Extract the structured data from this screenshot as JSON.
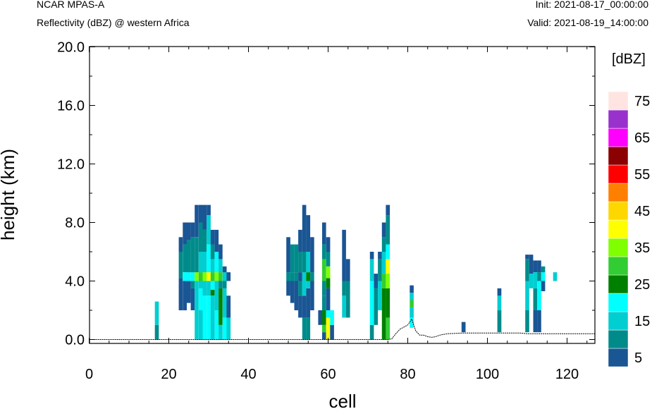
{
  "header": {
    "model": "NCAR MPAS-A",
    "field": "Reflectivity (dBZ) @ western Africa",
    "init": "Init: 2021-08-17_00:00:00",
    "valid": "Valid: 2021-08-19_14:00:00"
  },
  "chart_data": {
    "type": "heatmap",
    "title": "Reflectivity (dBZ) @ western Africa",
    "xlabel": "cell",
    "ylabel": "height (km)",
    "xlim": [
      0,
      127
    ],
    "ylim": [
      -0.6,
      20.0
    ],
    "xticks": [
      "0",
      "20",
      "40",
      "60",
      "80",
      "100",
      "120"
    ],
    "yticks": [
      "0.0",
      "4.0",
      "8.0",
      "12.0",
      "16.0",
      "20.0"
    ],
    "colorbar": {
      "unit": "[dBZ]",
      "levels": [
        5,
        10,
        15,
        20,
        25,
        30,
        35,
        40,
        45,
        50,
        55,
        60,
        65,
        70,
        75
      ],
      "labels": [
        "5",
        "15",
        "25",
        "35",
        "45",
        "55",
        "65",
        "75"
      ],
      "colors": [
        "#1a5594",
        "#008b8b",
        "#00ced1",
        "#00ffff",
        "#008000",
        "#32cd32",
        "#7fff00",
        "#ffff00",
        "#ffd700",
        "#ff8000",
        "#ff0000",
        "#8b0000",
        "#ff00ff",
        "#9932cc",
        "#ffe4e1"
      ]
    },
    "columns": [
      {
        "x": [
          16.5,
          17.5
        ],
        "segs": [
          [
            0.0,
            1.0,
            1
          ],
          [
            1.0,
            2.6,
            2
          ]
        ]
      },
      {
        "x": [
          22.5,
          23.5
        ],
        "segs": [
          [
            2.0,
            4.2,
            0
          ],
          [
            4.2,
            6.0,
            1
          ],
          [
            6.0,
            7.0,
            0
          ]
        ]
      },
      {
        "x": [
          23.5,
          24.5
        ],
        "segs": [
          [
            2.0,
            4.0,
            0
          ],
          [
            4.0,
            4.6,
            3
          ],
          [
            4.6,
            6.5,
            1
          ],
          [
            6.5,
            8.0,
            0
          ]
        ]
      },
      {
        "x": [
          24.5,
          25.5
        ],
        "segs": [
          [
            2.5,
            4.0,
            0
          ],
          [
            4.0,
            4.6,
            3
          ],
          [
            4.6,
            6.8,
            1
          ],
          [
            6.8,
            8.0,
            0
          ]
        ]
      },
      {
        "x": [
          25.5,
          26.5
        ],
        "segs": [
          [
            2.0,
            3.5,
            0
          ],
          [
            3.5,
            4.0,
            1
          ],
          [
            4.0,
            4.6,
            3
          ],
          [
            4.6,
            7.0,
            1
          ],
          [
            7.0,
            8.0,
            0
          ]
        ]
      },
      {
        "x": [
          26.5,
          27.5
        ],
        "segs": [
          [
            0.0,
            4.0,
            2
          ],
          [
            4.0,
            4.6,
            6
          ],
          [
            4.6,
            7.0,
            1
          ],
          [
            7.0,
            9.2,
            0
          ]
        ]
      },
      {
        "x": [
          27.5,
          28.5
        ],
        "segs": [
          [
            0.0,
            2.0,
            2
          ],
          [
            2.0,
            3.5,
            3
          ],
          [
            3.5,
            4.0,
            2
          ],
          [
            4.0,
            4.6,
            5
          ],
          [
            4.6,
            6.0,
            2
          ],
          [
            6.0,
            8.0,
            1
          ],
          [
            8.0,
            9.2,
            0
          ]
        ]
      },
      {
        "x": [
          28.5,
          29.5
        ],
        "segs": [
          [
            0.0,
            3.0,
            3
          ],
          [
            3.0,
            4.0,
            2
          ],
          [
            4.0,
            4.6,
            6
          ],
          [
            4.6,
            6.0,
            2
          ],
          [
            6.0,
            7.5,
            1
          ],
          [
            7.5,
            9.2,
            0
          ]
        ]
      },
      {
        "x": [
          29.5,
          30.5
        ],
        "segs": [
          [
            0.0,
            3.0,
            3
          ],
          [
            3.0,
            4.0,
            2
          ],
          [
            4.0,
            4.6,
            7
          ],
          [
            4.6,
            6.5,
            3
          ],
          [
            6.5,
            8.5,
            2
          ],
          [
            8.5,
            9.2,
            0
          ]
        ]
      },
      {
        "x": [
          30.5,
          31.5
        ],
        "segs": [
          [
            0.0,
            3.0,
            2
          ],
          [
            3.0,
            3.4,
            4
          ],
          [
            3.4,
            4.0,
            3
          ],
          [
            4.0,
            4.6,
            5
          ],
          [
            4.6,
            5.5,
            2
          ],
          [
            5.5,
            6.5,
            1
          ],
          [
            6.5,
            7.5,
            0
          ]
        ]
      },
      {
        "x": [
          31.5,
          32.5
        ],
        "segs": [
          [
            0.0,
            2.0,
            3
          ],
          [
            2.0,
            4.0,
            2
          ],
          [
            4.0,
            4.6,
            6
          ],
          [
            4.6,
            6.0,
            3
          ],
          [
            6.0,
            7.5,
            0
          ]
        ]
      },
      {
        "x": [
          32.5,
          33.5
        ],
        "segs": [
          [
            0.0,
            1.0,
            2
          ],
          [
            1.0,
            3.5,
            4
          ],
          [
            3.5,
            4.0,
            1
          ],
          [
            4.0,
            4.6,
            5
          ],
          [
            4.6,
            5.5,
            2
          ],
          [
            5.5,
            6.5,
            0
          ]
        ]
      },
      {
        "x": [
          33.5,
          34.5
        ],
        "segs": [
          [
            0.0,
            1.5,
            3
          ],
          [
            1.5,
            3.5,
            2
          ],
          [
            3.5,
            4.0,
            1
          ],
          [
            4.0,
            4.6,
            2
          ],
          [
            4.6,
            5.0,
            0
          ]
        ]
      },
      {
        "x": [
          34.5,
          35.5
        ],
        "segs": [
          [
            0.0,
            1.5,
            2
          ],
          [
            1.5,
            3.0,
            0
          ],
          [
            4.0,
            4.6,
            0
          ]
        ]
      },
      {
        "x": [
          49.5,
          50.5
        ],
        "segs": [
          [
            3.0,
            4.0,
            0
          ],
          [
            4.0,
            4.6,
            1
          ],
          [
            4.6,
            7.0,
            0
          ]
        ]
      },
      {
        "x": [
          50.5,
          51.5
        ],
        "segs": [
          [
            2.5,
            4.0,
            0
          ],
          [
            4.0,
            4.6,
            1
          ],
          [
            4.6,
            6.5,
            1
          ]
        ]
      },
      {
        "x": [
          51.5,
          52.5
        ],
        "segs": [
          [
            2.0,
            4.0,
            0
          ],
          [
            4.0,
            4.6,
            1
          ],
          [
            4.6,
            6.5,
            1
          ]
        ]
      },
      {
        "x": [
          52.5,
          53.5
        ],
        "segs": [
          [
            1.5,
            3.0,
            0
          ],
          [
            3.0,
            4.0,
            1
          ],
          [
            4.0,
            4.6,
            0
          ],
          [
            4.6,
            6.0,
            1
          ],
          [
            6.0,
            7.5,
            0
          ]
        ]
      },
      {
        "x": [
          53.5,
          54.5
        ],
        "segs": [
          [
            0.0,
            1.5,
            1
          ],
          [
            1.5,
            3.0,
            0
          ],
          [
            3.0,
            4.6,
            2
          ],
          [
            4.6,
            6.0,
            1
          ],
          [
            6.0,
            9.2,
            0
          ]
        ]
      },
      {
        "x": [
          54.5,
          55.5
        ],
        "segs": [
          [
            0.0,
            1.5,
            1
          ],
          [
            1.5,
            3.5,
            0
          ],
          [
            3.5,
            4.0,
            2
          ],
          [
            4.0,
            4.6,
            4
          ],
          [
            4.6,
            6.0,
            2
          ],
          [
            6.0,
            8.5,
            0
          ]
        ]
      },
      {
        "x": [
          55.5,
          56.5
        ],
        "segs": [
          [
            2.0,
            4.0,
            0
          ],
          [
            4.0,
            4.6,
            1
          ],
          [
            4.6,
            6.0,
            0
          ],
          [
            6.0,
            7.0,
            0
          ]
        ]
      },
      {
        "x": [
          57.5,
          58.5
        ],
        "segs": [
          [
            1.0,
            2.0,
            0
          ]
        ]
      },
      {
        "x": [
          58.5,
          59.5
        ],
        "segs": [
          [
            0.0,
            0.5,
            0
          ],
          [
            0.5,
            1.0,
            5
          ],
          [
            1.0,
            2.0,
            4
          ],
          [
            2.0,
            3.0,
            1
          ],
          [
            3.0,
            4.0,
            1
          ],
          [
            4.0,
            5.5,
            5
          ],
          [
            5.5,
            6.5,
            1
          ],
          [
            6.5,
            8.0,
            0
          ]
        ]
      },
      {
        "x": [
          59.5,
          60.5
        ],
        "segs": [
          [
            0.0,
            1.5,
            7
          ],
          [
            1.5,
            2.0,
            3
          ],
          [
            2.0,
            3.5,
            0
          ],
          [
            3.5,
            4.2,
            4
          ],
          [
            4.2,
            5.0,
            6
          ],
          [
            5.0,
            6.0,
            1
          ],
          [
            6.0,
            7.0,
            0
          ]
        ]
      },
      {
        "x": [
          60.5,
          61.5
        ],
        "segs": [
          [
            0.0,
            1.0,
            0
          ],
          [
            1.0,
            2.0,
            3
          ]
        ]
      },
      {
        "x": [
          63.5,
          64.5
        ],
        "segs": [
          [
            1.5,
            3.0,
            2
          ],
          [
            3.0,
            4.0,
            1
          ],
          [
            4.0,
            6.0,
            0
          ],
          [
            6.0,
            7.5,
            0
          ]
        ]
      },
      {
        "x": [
          64.5,
          65.5
        ],
        "segs": [
          [
            1.5,
            4.0,
            1
          ],
          [
            4.0,
            5.5,
            0
          ]
        ]
      },
      {
        "x": [
          70.5,
          71.5
        ],
        "segs": [
          [
            0.0,
            1.0,
            1
          ],
          [
            1.0,
            4.0,
            3
          ],
          [
            4.0,
            5.5,
            2
          ],
          [
            5.5,
            6.0,
            0
          ]
        ]
      },
      {
        "x": [
          71.5,
          72.5
        ],
        "segs": [
          [
            1.0,
            3.5,
            1
          ],
          [
            3.5,
            4.5,
            0
          ]
        ]
      },
      {
        "x": [
          72.5,
          73.5
        ],
        "segs": [
          [
            2.0,
            4.0,
            2
          ],
          [
            4.0,
            5.5,
            1
          ],
          [
            5.5,
            6.0,
            0
          ]
        ]
      },
      {
        "x": [
          73.5,
          74.5
        ],
        "segs": [
          [
            0.0,
            3.5,
            4
          ],
          [
            3.5,
            4.5,
            5
          ],
          [
            4.5,
            6.0,
            2
          ],
          [
            6.0,
            7.0,
            1
          ],
          [
            7.0,
            8.0,
            0
          ]
        ]
      },
      {
        "x": [
          74.5,
          75.5
        ],
        "segs": [
          [
            0.0,
            1.5,
            5
          ],
          [
            1.5,
            3.5,
            4
          ],
          [
            3.5,
            4.5,
            6
          ],
          [
            4.5,
            5.5,
            7
          ],
          [
            5.5,
            6.5,
            3
          ],
          [
            6.5,
            8.5,
            1
          ],
          [
            8.5,
            9.2,
            0
          ]
        ]
      },
      {
        "x": [
          80.5,
          81.5
        ],
        "segs": [
          [
            0.8,
            1.5,
            3
          ],
          [
            1.5,
            2.2,
            2
          ],
          [
            2.2,
            2.7,
            5
          ],
          [
            2.7,
            3.2,
            2
          ],
          [
            3.2,
            3.7,
            0
          ]
        ]
      },
      {
        "x": [
          93.5,
          94.5
        ],
        "segs": [
          [
            0.5,
            1.2,
            0
          ]
        ]
      },
      {
        "x": [
          102.5,
          103.5
        ],
        "segs": [
          [
            0.5,
            2.0,
            1
          ],
          [
            2.0,
            3.0,
            2
          ],
          [
            3.0,
            3.5,
            0
          ]
        ]
      },
      {
        "x": [
          109.5,
          110.5
        ],
        "segs": [
          [
            0.5,
            2.0,
            1
          ],
          [
            2.0,
            4.0,
            2
          ],
          [
            4.0,
            5.5,
            1
          ],
          [
            5.5,
            5.8,
            0
          ]
        ]
      },
      {
        "x": [
          110.5,
          111.5
        ],
        "segs": [
          [
            3.5,
            4.5,
            2
          ],
          [
            4.5,
            5.8,
            0
          ]
        ]
      },
      {
        "x": [
          111.5,
          112.5
        ],
        "segs": [
          [
            0.5,
            2.0,
            0
          ],
          [
            2.0,
            3.5,
            1
          ],
          [
            3.5,
            4.6,
            2
          ],
          [
            4.6,
            5.4,
            0
          ]
        ]
      },
      {
        "x": [
          112.5,
          113.5
        ],
        "segs": [
          [
            0.5,
            2.0,
            0
          ],
          [
            2.0,
            4.0,
            3
          ],
          [
            4.0,
            4.6,
            1
          ],
          [
            4.6,
            5.4,
            0
          ]
        ]
      },
      {
        "x": [
          113.5,
          114.5
        ],
        "segs": [
          [
            3.3,
            4.0,
            0
          ],
          [
            4.0,
            4.6,
            3
          ],
          [
            4.6,
            5.0,
            1
          ]
        ]
      },
      {
        "x": [
          116.5,
          117.5
        ],
        "segs": [
          [
            4.0,
            4.6,
            2
          ]
        ]
      }
    ],
    "terrain": [
      [
        0,
        0
      ],
      [
        75,
        0
      ],
      [
        76,
        0.05
      ],
      [
        77,
        0.4
      ],
      [
        78,
        0.7
      ],
      [
        79,
        0.85
      ],
      [
        80,
        1.0
      ],
      [
        81,
        1.4
      ],
      [
        82,
        0.6
      ],
      [
        83,
        0.3
      ],
      [
        84,
        0.3
      ],
      [
        85,
        0.2
      ],
      [
        86,
        0.15
      ],
      [
        87,
        0.2
      ],
      [
        88,
        0.3
      ],
      [
        89,
        0.35
      ],
      [
        90,
        0.4
      ],
      [
        92,
        0.42
      ],
      [
        94,
        0.45
      ],
      [
        96,
        0.45
      ],
      [
        100,
        0.45
      ],
      [
        104,
        0.45
      ],
      [
        108,
        0.45
      ],
      [
        110,
        0.4
      ],
      [
        112,
        0.4
      ],
      [
        115,
        0.4
      ],
      [
        120,
        0.4
      ],
      [
        127,
        0.4
      ]
    ]
  }
}
